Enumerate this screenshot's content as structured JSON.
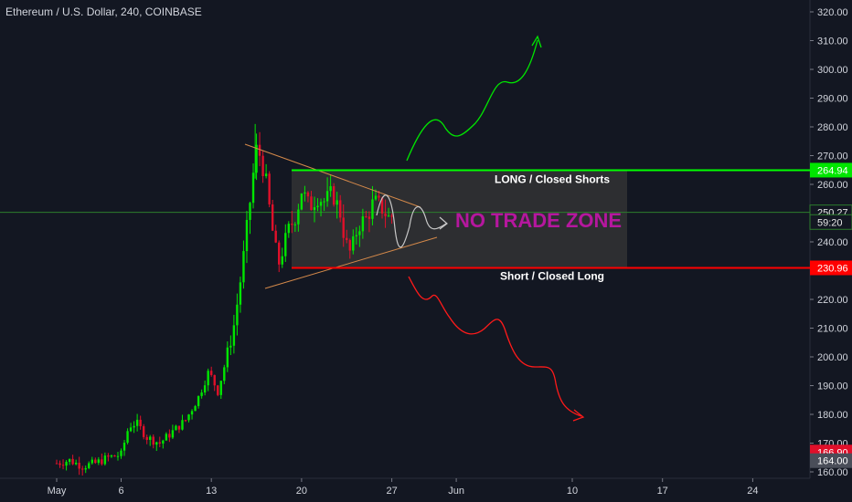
{
  "header": {
    "title": "Ethereum / U.S. Dollar, 240, COINBASE"
  },
  "chart_data": {
    "type": "candlestick",
    "title": "Ethereum / U.S. Dollar, 240, COINBASE",
    "x_axis": {
      "labels": [
        "May",
        "6",
        "13",
        "20",
        "27",
        "Jun",
        "10",
        "17",
        "24"
      ]
    },
    "y_axis": {
      "range": [
        160,
        322
      ],
      "ticks": [
        "160.00",
        "170.00",
        "180.00",
        "190.00",
        "200.00",
        "210.00",
        "220.00",
        "230.00",
        "240.00",
        "250.00",
        "260.00",
        "270.00",
        "280.00",
        "290.00",
        "300.00",
        "310.00",
        "320.00"
      ]
    },
    "price_labels": [
      {
        "value": "264.94",
        "price": 264.94,
        "color": "#00e600"
      },
      {
        "value": "250.27",
        "price": 250.27,
        "color": "#131722"
      },
      {
        "value": "59:20",
        "price": 246.9,
        "color": "#131722"
      },
      {
        "value": "230.96",
        "price": 230.96,
        "color": "#ff0000"
      },
      {
        "value": "166.90",
        "price": 166.9,
        "color": "#e0102a"
      },
      {
        "value": "164.00",
        "price": 163.9,
        "color": "#4a4e59"
      }
    ],
    "annotations": {
      "long_line": {
        "label": "LONG / Closed Shorts",
        "price": 264.94,
        "color": "#00ff00"
      },
      "short_line": {
        "label": "Short / Closed Long",
        "price": 230.96,
        "color": "#ff0000"
      },
      "no_trade_zone": {
        "label": "NO TRADE ZONE",
        "top": 264.94,
        "bottom": 230.96,
        "color": "#b5179e"
      },
      "current_price": 250.27
    },
    "colors": {
      "up": "#00e600",
      "down": "#e0102a",
      "background": "#131722",
      "axis_text": "#d1d4dc"
    }
  }
}
